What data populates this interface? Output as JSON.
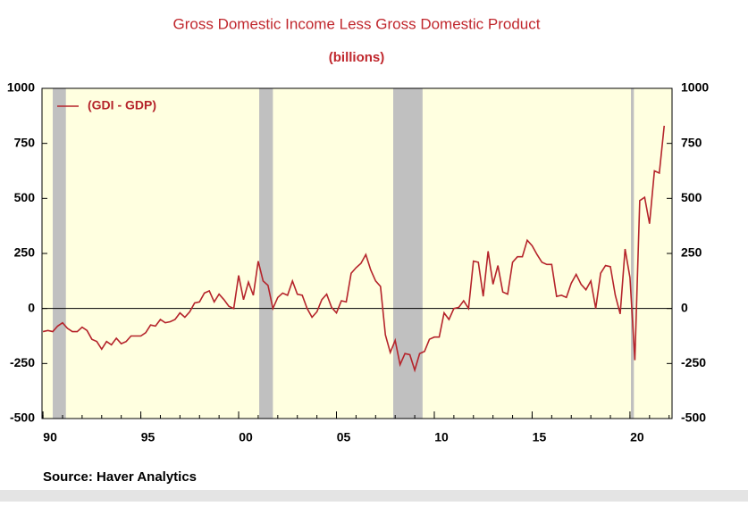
{
  "chart_data": {
    "type": "line",
    "title": "Gross Domestic Income Less Gross Domestic Product",
    "subtitle": "(billions)",
    "source": "Source:  Haver Analytics",
    "xlim": [
      1989.95,
      2022.15
    ],
    "xticks": [
      {
        "value": 1990,
        "label": "90"
      },
      {
        "value": 1995,
        "label": "95"
      },
      {
        "value": 2000,
        "label": "00"
      },
      {
        "value": 2005,
        "label": "05"
      },
      {
        "value": 2010,
        "label": "10"
      },
      {
        "value": 2015,
        "label": "15"
      },
      {
        "value": 2020,
        "label": "20"
      }
    ],
    "ylim": [
      -500,
      1000
    ],
    "yticks": [
      1000,
      750,
      500,
      250,
      0,
      -250,
      -500
    ],
    "y2lim": [
      -500,
      1000
    ],
    "y2ticks": [
      1000,
      750,
      500,
      250,
      0,
      -250,
      -500
    ],
    "shading": [
      [
        1990.5,
        1991.17
      ],
      [
        2001.05,
        2001.75
      ],
      [
        2007.9,
        2009.4
      ],
      [
        2020.05,
        2020.2
      ]
    ],
    "shading_color": "#c0c0c0",
    "background": "#ffffe0",
    "legend": "upper left",
    "x": [
      1990,
      1990.25,
      1990.5,
      1990.75,
      1991,
      1991.25,
      1991.5,
      1991.75,
      1992,
      1992.25,
      1992.5,
      1992.75,
      1993,
      1993.25,
      1993.5,
      1993.75,
      1994,
      1994.25,
      1994.5,
      1994.75,
      1995,
      1995.25,
      1995.5,
      1995.75,
      1996,
      1996.25,
      1996.5,
      1996.75,
      1997,
      1997.25,
      1997.5,
      1997.75,
      1998,
      1998.25,
      1998.5,
      1998.75,
      1999,
      1999.25,
      1999.5,
      1999.75,
      2000,
      2000.25,
      2000.5,
      2000.75,
      2001,
      2001.25,
      2001.5,
      2001.75,
      2002,
      2002.25,
      2002.5,
      2002.75,
      2003,
      2003.25,
      2003.5,
      2003.75,
      2004,
      2004.25,
      2004.5,
      2004.75,
      2005,
      2005.25,
      2005.5,
      2005.75,
      2006,
      2006.25,
      2006.5,
      2006.75,
      2007,
      2007.25,
      2007.5,
      2007.75,
      2008,
      2008.25,
      2008.5,
      2008.75,
      2009,
      2009.25,
      2009.5,
      2009.75,
      2010,
      2010.25,
      2010.5,
      2010.75,
      2011,
      2011.25,
      2011.5,
      2011.75,
      2012,
      2012.25,
      2012.5,
      2012.75,
      2013,
      2013.25,
      2013.5,
      2013.75,
      2014,
      2014.25,
      2014.5,
      2014.75,
      2015,
      2015.25,
      2015.5,
      2015.75,
      2016,
      2016.25,
      2016.5,
      2016.75,
      2017,
      2017.25,
      2017.5,
      2017.75,
      2018,
      2018.25,
      2018.5,
      2018.75,
      2019,
      2019.25,
      2019.5,
      2019.75,
      2020,
      2020.25,
      2020.5,
      2020.75,
      2021,
      2021.25,
      2021.5,
      2021.75
    ],
    "series": [
      {
        "name": "(GDI - GDP)",
        "color": "#b5242b",
        "values": [
          -105,
          -100,
          -105,
          -80,
          -65,
          -90,
          -105,
          -105,
          -85,
          -100,
          -140,
          -150,
          -185,
          -150,
          -165,
          -135,
          -160,
          -150,
          -125,
          -125,
          -125,
          -110,
          -75,
          -80,
          -50,
          -65,
          -60,
          -50,
          -20,
          -40,
          -15,
          25,
          30,
          70,
          80,
          30,
          65,
          40,
          10,
          0,
          150,
          40,
          120,
          60,
          215,
          125,
          105,
          0,
          50,
          70,
          60,
          125,
          65,
          60,
          0,
          -40,
          -15,
          40,
          65,
          5,
          -20,
          35,
          30,
          160,
          185,
          205,
          245,
          175,
          125,
          100,
          -120,
          -200,
          -145,
          -255,
          -205,
          -210,
          -280,
          -205,
          -195,
          -140,
          -130,
          -130,
          -20,
          -50,
          0,
          5,
          35,
          0,
          215,
          210,
          55,
          260,
          110,
          195,
          75,
          65,
          210,
          235,
          235,
          310,
          285,
          245,
          210,
          200,
          200,
          55,
          60,
          50,
          115,
          155,
          110,
          85,
          125,
          0,
          160,
          195,
          190,
          60,
          -25,
          270,
          140,
          -235,
          490,
          505,
          385,
          625,
          615,
          830
        ]
      }
    ]
  }
}
